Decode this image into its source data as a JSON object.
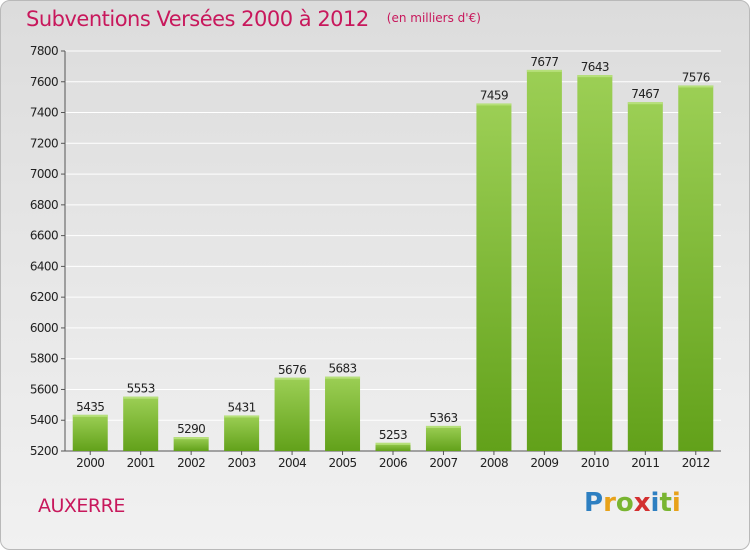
{
  "header": {
    "title": "Subventions Versées 2000 à 2012",
    "unit": "(en milliers d'€)"
  },
  "footer": {
    "city": "AUXERRE",
    "logo_text": "Proxiti",
    "logo_colors": [
      "#2d7fc1",
      "#e8a21a",
      "#79b531",
      "#d32f2f",
      "#2d7fc1",
      "#79b531",
      "#e8a21a"
    ]
  },
  "chart_data": {
    "type": "bar",
    "categories": [
      "2000",
      "2001",
      "2002",
      "2003",
      "2004",
      "2005",
      "2006",
      "2007",
      "2008",
      "2009",
      "2010",
      "2011",
      "2012"
    ],
    "values": [
      5435,
      5553,
      5290,
      5431,
      5676,
      5683,
      5253,
      5363,
      7459,
      7677,
      7643,
      7467,
      7576
    ],
    "ylim": [
      5200,
      7800
    ],
    "yticks": [
      5200,
      5400,
      5600,
      5800,
      6000,
      6200,
      6400,
      6600,
      6800,
      7000,
      7200,
      7400,
      7600,
      7800
    ],
    "grid": true,
    "bar_color_top": "#9ccf55",
    "bar_color_bottom": "#62a11a",
    "grid_color": "#ffffff"
  }
}
